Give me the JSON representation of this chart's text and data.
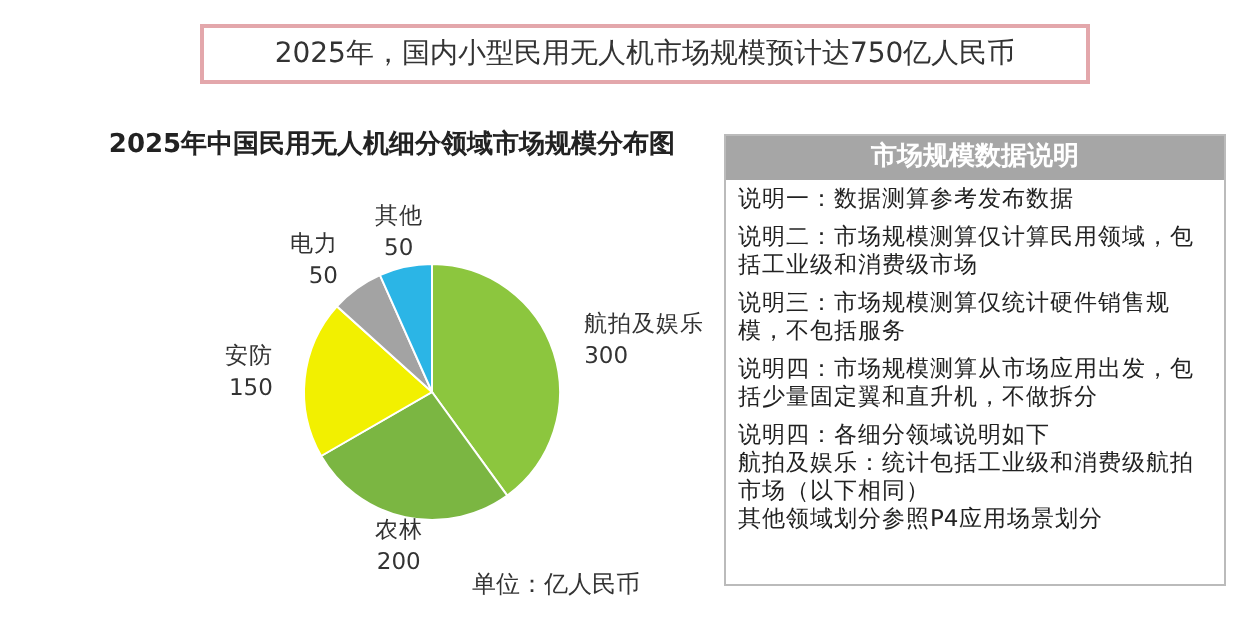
{
  "chart_data": [
    {
      "type": "pie",
      "title": "2025年，国内小型民用无人机市场规模预计达750亿人民币",
      "subtitle": "2025年中国民用无人机细分领域市场规模分布图",
      "categories": [
        "航拍及娱乐",
        "农林",
        "安防",
        "电力",
        "其他"
      ],
      "values": [
        300,
        200,
        150,
        50,
        50
      ],
      "colors": [
        "#8cc63e",
        "#7bb642",
        "#f2f000",
        "#a3a3a3",
        "#2bb5e6"
      ],
      "data_labels": true,
      "annotations": [
        "单位：亿人民币"
      ]
    },
    {
      "type": "other",
      "title": "市场规模数据说明",
      "annotations": [
        "说明一：数据测算参考发布数据",
        "说明二：市场规模测算仅计算民用领域，包括工业级和消费级市场",
        "说明三：市场规模测算仅统计硬件销售规模，不包括服务",
        "说明四：市场规模测算从市场应用出发，包括少量固定翼和直升机，不做拆分",
        "说明四：各细分领域说明如下",
        "航拍及娱乐：统计包括工业级和消费级航拍市场（以下相同）",
        "其他领域划分参照P4应用场景划分"
      ]
    }
  ]
}
